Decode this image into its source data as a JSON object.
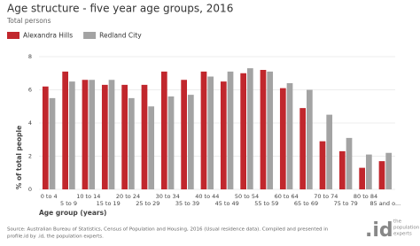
{
  "chart_data": {
    "type": "bar",
    "title": "Age structure - five year age groups, 2016",
    "subtitle": "Total persons",
    "y_label": "% of total people",
    "x_label": "Age group (years)",
    "categories": [
      "0 to 4",
      "5 to 9",
      "10 to 14",
      "15 to 19",
      "20 to 24",
      "25 to 29",
      "30 to 34",
      "35 to 39",
      "40 to 44",
      "45 to 49",
      "50 to 54",
      "55 to 59",
      "60 to 64",
      "65 to 69",
      "70 to 74",
      "75 to 79",
      "80 to 84",
      "85 and o..."
    ],
    "series": [
      {
        "name": "Alexandra Hills",
        "color": "#c1272d",
        "values": [
          6.2,
          7.1,
          6.6,
          6.3,
          6.3,
          6.3,
          7.1,
          6.6,
          7.1,
          6.5,
          7.0,
          7.2,
          6.1,
          4.9,
          2.9,
          2.3,
          1.3,
          1.7
        ]
      },
      {
        "name": "Redland City",
        "color": "#a3a3a3",
        "values": [
          5.5,
          6.5,
          6.6,
          6.6,
          5.5,
          5.0,
          5.6,
          5.7,
          6.8,
          7.1,
          7.3,
          7.1,
          6.4,
          6.0,
          4.5,
          3.1,
          2.1,
          2.2
        ]
      }
    ],
    "ylim": [
      0,
      8
    ],
    "yticks": [
      0,
      2,
      4,
      6,
      8
    ],
    "grid": true,
    "source": [
      "Source: Australian Bureau of Statistics, Census of Population and Housing, 2016 (Usual residence data). Compiled and presented in",
      "profile.id by .id, the population experts."
    ],
    "logo": {
      "mark": ".id",
      "text": [
        "the",
        "population",
        "experts"
      ]
    }
  }
}
